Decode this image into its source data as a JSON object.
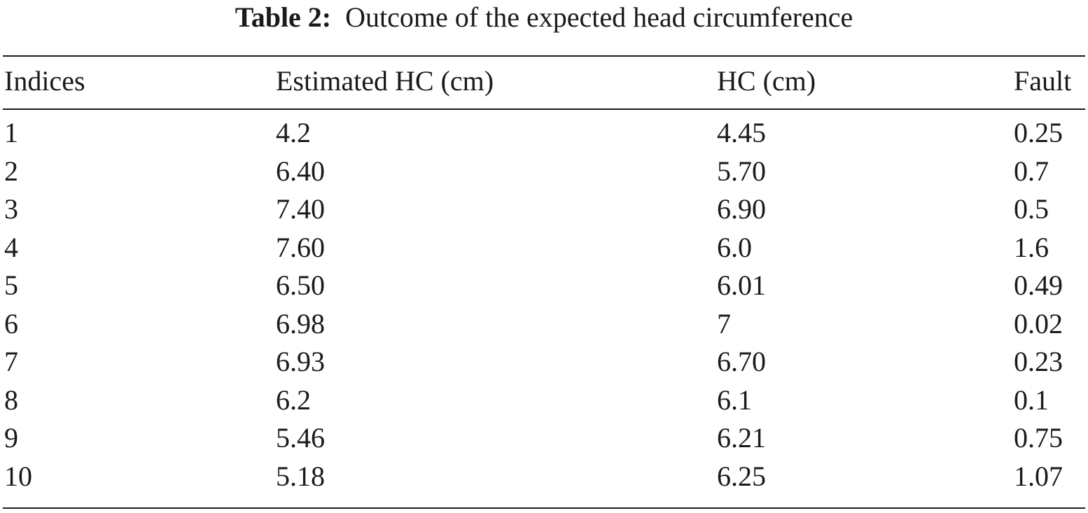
{
  "caption": {
    "label": "Table 2:",
    "text": "Outcome of the expected head circumference"
  },
  "table": {
    "headers": [
      "Indices",
      "Estimated HC (cm)",
      "HC (cm)",
      "Fault"
    ],
    "rows": [
      [
        "1",
        "4.2",
        "4.45",
        "0.25"
      ],
      [
        "2",
        "6.40",
        "5.70",
        "0.7"
      ],
      [
        "3",
        "7.40",
        "6.90",
        "0.5"
      ],
      [
        "4",
        "7.60",
        "6.0",
        "1.6"
      ],
      [
        "5",
        "6.50",
        "6.01",
        "0.49"
      ],
      [
        "6",
        "6.98",
        "7",
        "0.02"
      ],
      [
        "7",
        "6.93",
        "6.70",
        "0.23"
      ],
      [
        "8",
        "6.2",
        "6.1",
        "0.1"
      ],
      [
        "9",
        "5.46",
        "6.21",
        "0.75"
      ],
      [
        "10",
        "5.18",
        "6.25",
        "1.07"
      ]
    ]
  }
}
